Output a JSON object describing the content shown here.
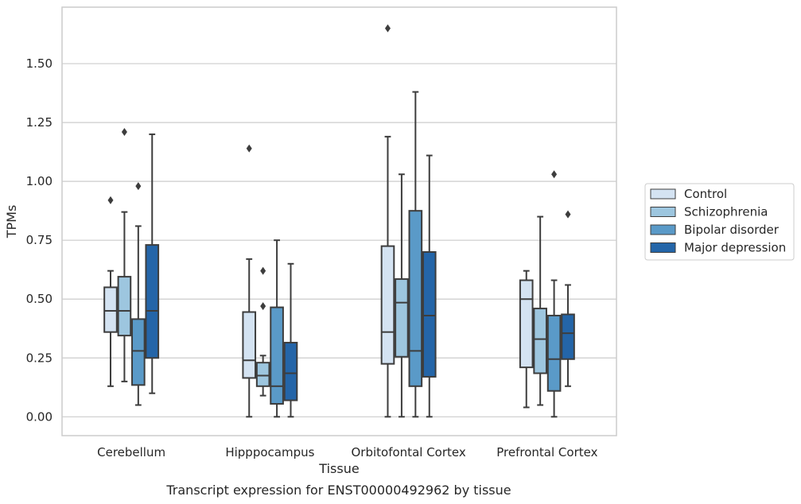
{
  "chart_data": {
    "type": "boxplot",
    "title": "",
    "caption": "Transcript expression for ENST00000492962 by tissue",
    "xlabel": "Tissue",
    "ylabel": "TPMs",
    "ylim": [
      -0.08,
      1.74
    ],
    "yticks": [
      0.0,
      0.25,
      0.5,
      0.75,
      1.0,
      1.25,
      1.5
    ],
    "ytick_labels": [
      "0.00",
      "0.25",
      "0.50",
      "0.75",
      "1.00",
      "1.25",
      "1.50"
    ],
    "grid": "horizontal",
    "legend_position": "outside-right",
    "categories": [
      "Cerebellum",
      "Hipppocampus",
      "Orbitofontal Cortex",
      "Prefrontal Cortex"
    ],
    "series": [
      {
        "name": "Control",
        "color": "#d4e3f2",
        "boxes": [
          {
            "whislo": 0.13,
            "q1": 0.36,
            "med": 0.45,
            "q3": 0.55,
            "whishi": 0.62,
            "fliers": [
              0.92
            ]
          },
          {
            "whislo": 0.0,
            "q1": 0.165,
            "med": 0.24,
            "q3": 0.445,
            "whishi": 0.67,
            "fliers": [
              1.14
            ]
          },
          {
            "whislo": 0.0,
            "q1": 0.225,
            "med": 0.36,
            "q3": 0.725,
            "whishi": 1.19,
            "fliers": [
              1.65
            ]
          },
          {
            "whislo": 0.04,
            "q1": 0.21,
            "med": 0.5,
            "q3": 0.58,
            "whishi": 0.62,
            "fliers": []
          }
        ]
      },
      {
        "name": "Schizophrenia",
        "color": "#9dc6df",
        "boxes": [
          {
            "whislo": 0.15,
            "q1": 0.345,
            "med": 0.45,
            "q3": 0.595,
            "whishi": 0.87,
            "fliers": [
              1.21
            ]
          },
          {
            "whislo": 0.09,
            "q1": 0.13,
            "med": 0.175,
            "q3": 0.23,
            "whishi": 0.26,
            "fliers": [
              0.62,
              0.47
            ]
          },
          {
            "whislo": 0.0,
            "q1": 0.255,
            "med": 0.485,
            "q3": 0.585,
            "whishi": 1.03,
            "fliers": []
          },
          {
            "whislo": 0.05,
            "q1": 0.185,
            "med": 0.33,
            "q3": 0.46,
            "whishi": 0.85,
            "fliers": []
          }
        ]
      },
      {
        "name": "Bipolar disorder",
        "color": "#5a9ac8",
        "boxes": [
          {
            "whislo": 0.05,
            "q1": 0.135,
            "med": 0.28,
            "q3": 0.415,
            "whishi": 0.81,
            "fliers": [
              0.98
            ]
          },
          {
            "whislo": 0.0,
            "q1": 0.055,
            "med": 0.13,
            "q3": 0.465,
            "whishi": 0.75,
            "fliers": []
          },
          {
            "whislo": 0.0,
            "q1": 0.13,
            "med": 0.28,
            "q3": 0.875,
            "whishi": 1.38,
            "fliers": []
          },
          {
            "whislo": 0.0,
            "q1": 0.11,
            "med": 0.245,
            "q3": 0.43,
            "whishi": 0.58,
            "fliers": [
              1.03
            ]
          }
        ]
      },
      {
        "name": "Major depression",
        "color": "#2465a8",
        "boxes": [
          {
            "whislo": 0.1,
            "q1": 0.25,
            "med": 0.45,
            "q3": 0.73,
            "whishi": 1.2,
            "fliers": []
          },
          {
            "whislo": 0.0,
            "q1": 0.07,
            "med": 0.185,
            "q3": 0.315,
            "whishi": 0.65,
            "fliers": []
          },
          {
            "whislo": 0.0,
            "q1": 0.17,
            "med": 0.43,
            "q3": 0.7,
            "whishi": 1.11,
            "fliers": []
          },
          {
            "whislo": 0.13,
            "q1": 0.245,
            "med": 0.355,
            "q3": 0.435,
            "whishi": 0.56,
            "fliers": [
              0.86
            ]
          }
        ]
      }
    ]
  }
}
